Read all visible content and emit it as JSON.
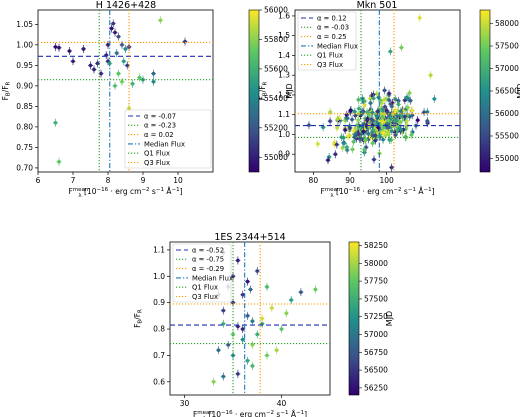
{
  "chart_data": [
    {
      "type": "scatter",
      "title": "H 1426+428",
      "ylabel": "F_B/F_R",
      "xlabel": "F_λ^mean [10^−16 · erg cm^−2 s^−1 Å^−1]",
      "xlim": [
        6,
        11
      ],
      "ylim": [
        0.69,
        1.085
      ],
      "xticks": [
        6,
        7,
        8,
        9,
        10
      ],
      "yticks": [
        0.7,
        0.75,
        0.8,
        0.85,
        0.9,
        0.95,
        1.0,
        1.05
      ],
      "colorbar": {
        "label": "MJD",
        "range": [
          54900,
          56000
        ],
        "ticks": [
          55000,
          55200,
          55400,
          55600,
          55800,
          56000
        ]
      },
      "legend": {
        "placement": "lower right",
        "entries": [
          "α = -0.07",
          "α = -0.23",
          "α = 0.02",
          "Median Flux",
          "Q1 Flux",
          "Q3 Flux"
        ]
      },
      "series": [
        {
          "points": [
            {
              "x": 6.5,
              "y": 0.995,
              "c": 54950
            },
            {
              "x": 6.6,
              "y": 0.993,
              "c": 54960
            },
            {
              "x": 6.9,
              "y": 0.985,
              "c": 54970
            },
            {
              "x": 7.3,
              "y": 0.99,
              "c": 54980
            },
            {
              "x": 7.0,
              "y": 0.96,
              "c": 54990
            },
            {
              "x": 7.5,
              "y": 0.95,
              "c": 55000
            },
            {
              "x": 7.6,
              "y": 0.94,
              "c": 55010
            },
            {
              "x": 7.8,
              "y": 0.93,
              "c": 55020
            },
            {
              "x": 8.0,
              "y": 0.96,
              "c": 55030
            },
            {
              "x": 8.1,
              "y": 1.04,
              "c": 54960
            },
            {
              "x": 8.15,
              "y": 1.052,
              "c": 55100
            },
            {
              "x": 8.2,
              "y": 1.03,
              "c": 54980
            },
            {
              "x": 8.3,
              "y": 1.02,
              "c": 55150
            },
            {
              "x": 8.4,
              "y": 1.0,
              "c": 55200
            },
            {
              "x": 8.0,
              "y": 1.0,
              "c": 54990
            },
            {
              "x": 8.25,
              "y": 0.98,
              "c": 55300
            },
            {
              "x": 7.95,
              "y": 0.975,
              "c": 55000
            },
            {
              "x": 8.5,
              "y": 0.99,
              "c": 55400
            },
            {
              "x": 8.45,
              "y": 0.96,
              "c": 55500
            },
            {
              "x": 8.55,
              "y": 0.95,
              "c": 55100
            },
            {
              "x": 8.6,
              "y": 0.995,
              "c": 55050
            },
            {
              "x": 8.05,
              "y": 0.955,
              "c": 55600
            },
            {
              "x": 7.7,
              "y": 0.955,
              "c": 55050
            },
            {
              "x": 8.3,
              "y": 0.93,
              "c": 55700
            },
            {
              "x": 9.0,
              "y": 0.915,
              "c": 55500
            },
            {
              "x": 9.3,
              "y": 0.91,
              "c": 55400
            },
            {
              "x": 8.7,
              "y": 0.905,
              "c": 55600
            },
            {
              "x": 9.5,
              "y": 1.06,
              "c": 55800
            },
            {
              "x": 8.2,
              "y": 0.9,
              "c": 55650
            },
            {
              "x": 10.2,
              "y": 1.008,
              "c": 55100
            },
            {
              "x": 9.3,
              "y": 0.93,
              "c": 55300
            },
            {
              "x": 8.9,
              "y": 0.92,
              "c": 55700
            },
            {
              "x": 8.4,
              "y": 0.91,
              "c": 55750
            },
            {
              "x": 6.5,
              "y": 0.81,
              "c": 55600
            },
            {
              "x": 6.6,
              "y": 0.715,
              "c": 55700
            },
            {
              "x": 8.6,
              "y": 0.845,
              "c": 55900
            }
          ]
        }
      ],
      "lines": {
        "horizontal": [
          {
            "y": 0.972,
            "role": "median",
            "color": "#1f2fb4",
            "style": "dashed"
          },
          {
            "y": 0.915,
            "role": "Q1",
            "color": "#2ca02c",
            "style": "dotted"
          },
          {
            "y": 1.006,
            "role": "Q3",
            "color": "#ff9900",
            "style": "dotted"
          }
        ],
        "vertical": [
          {
            "x": 8.05,
            "role": "Median Flux",
            "color": "#1f77b4",
            "style": "dashdot"
          },
          {
            "x": 7.75,
            "role": "Q1 Flux",
            "color": "#2ca02c",
            "style": "dotted"
          },
          {
            "x": 8.6,
            "role": "Q3 Flux",
            "color": "#ff9900",
            "style": "dotted"
          }
        ]
      }
    },
    {
      "type": "scatter",
      "title": "Mkn 501",
      "ylabel": "F_B/F_R",
      "xlabel": "F_λ^mean [10^−16 · erg cm^−2 s^−1 Å^−1]",
      "xlim": [
        75,
        120
      ],
      "ylim": [
        0.81,
        1.63
      ],
      "xticks": [
        80,
        90,
        100
      ],
      "yticks": [
        0.9,
        1.0,
        1.1,
        1.2,
        1.3,
        1.4,
        1.5,
        1.6
      ],
      "colorbar": {
        "label": "MJD",
        "range": [
          54700,
          58300
        ],
        "ticks": [
          55000,
          55500,
          56000,
          56500,
          57000,
          57500,
          58000
        ]
      },
      "legend": {
        "placement": "upper left",
        "entries": [
          "α = 0.12",
          "α = -0.03",
          "α = 0.25",
          "Median Flux",
          "Q1 Flux",
          "Q3 Flux"
        ]
      },
      "series": [
        {
          "generated_cloud": true,
          "count": 300,
          "x_center": 97,
          "y_center": 1.05
        }
      ],
      "lines": {
        "horizontal": [
          {
            "y": 1.045,
            "role": "median",
            "color": "#1f2fb4",
            "style": "dashed"
          },
          {
            "y": 0.985,
            "role": "Q1",
            "color": "#2ca02c",
            "style": "dotted"
          },
          {
            "y": 1.105,
            "role": "Q3",
            "color": "#ff9900",
            "style": "dotted"
          }
        ],
        "vertical": [
          {
            "x": 98,
            "role": "Median Flux",
            "color": "#1f77b4",
            "style": "dashdot"
          },
          {
            "x": 93,
            "role": "Q1 Flux",
            "color": "#2ca02c",
            "style": "dotted"
          },
          {
            "x": 102,
            "role": "Q3 Flux",
            "color": "#ff9900",
            "style": "dotted"
          }
        ]
      }
    },
    {
      "type": "scatter",
      "title": "1ES 2344+514",
      "ylabel": "F_B/F_R",
      "xlabel": "F_λ^mean [10^−16 · erg cm^−2 s^−1 Å^−1]",
      "xlim": [
        28.5,
        45
      ],
      "ylim": [
        0.55,
        1.13
      ],
      "xticks": [
        30,
        40
      ],
      "yticks": [
        0.6,
        0.7,
        0.8,
        0.9,
        1.0,
        1.1
      ],
      "colorbar": {
        "label": "MJD",
        "range": [
          56150,
          58300
        ],
        "ticks": [
          56250,
          56500,
          56750,
          57000,
          57250,
          57500,
          57750,
          58000,
          58250
        ]
      },
      "legend": {
        "placement": "upper left",
        "entries": [
          "α = -0.52",
          "α = -0.75",
          "α = -0.29",
          "Median Flux",
          "Q1 Flux",
          "Q3 Flux"
        ]
      },
      "series": [
        {
          "points": [
            {
              "x": 34,
              "y": 1.09,
              "c": 56300
            },
            {
              "x": 35.5,
              "y": 1.06,
              "c": 56350
            },
            {
              "x": 35,
              "y": 1.0,
              "c": 56400
            },
            {
              "x": 34.5,
              "y": 0.96,
              "c": 56300
            },
            {
              "x": 36,
              "y": 0.93,
              "c": 56500
            },
            {
              "x": 35,
              "y": 0.9,
              "c": 56450
            },
            {
              "x": 34,
              "y": 0.87,
              "c": 56600
            },
            {
              "x": 36.5,
              "y": 0.85,
              "c": 56800
            },
            {
              "x": 37,
              "y": 0.83,
              "c": 57000
            },
            {
              "x": 35.5,
              "y": 0.81,
              "c": 56400
            },
            {
              "x": 38,
              "y": 0.82,
              "c": 57300
            },
            {
              "x": 37.5,
              "y": 0.78,
              "c": 57500
            },
            {
              "x": 36,
              "y": 0.76,
              "c": 57200
            },
            {
              "x": 34.5,
              "y": 0.74,
              "c": 56700
            },
            {
              "x": 33.5,
              "y": 0.72,
              "c": 56900
            },
            {
              "x": 35,
              "y": 0.7,
              "c": 57100
            },
            {
              "x": 36.5,
              "y": 0.68,
              "c": 57400
            },
            {
              "x": 37,
              "y": 0.66,
              "c": 57600
            },
            {
              "x": 38.5,
              "y": 0.7,
              "c": 57800
            },
            {
              "x": 39.5,
              "y": 0.72,
              "c": 58000
            },
            {
              "x": 40,
              "y": 0.8,
              "c": 57700
            },
            {
              "x": 40.5,
              "y": 0.86,
              "c": 57900
            },
            {
              "x": 39,
              "y": 0.88,
              "c": 58100
            },
            {
              "x": 38.5,
              "y": 0.96,
              "c": 57600
            },
            {
              "x": 41,
              "y": 0.91,
              "c": 57300
            },
            {
              "x": 43.5,
              "y": 0.95,
              "c": 57800
            },
            {
              "x": 42,
              "y": 0.94,
              "c": 56700
            },
            {
              "x": 33,
              "y": 0.6,
              "c": 57900
            },
            {
              "x": 34,
              "y": 0.62,
              "c": 57000
            },
            {
              "x": 35.5,
              "y": 0.63,
              "c": 56500
            },
            {
              "x": 36.5,
              "y": 0.98,
              "c": 56300
            },
            {
              "x": 37.5,
              "y": 1.02,
              "c": 56600
            },
            {
              "x": 36,
              "y": 0.8,
              "c": 56350
            },
            {
              "x": 34,
              "y": 0.82,
              "c": 57500
            },
            {
              "x": 37,
              "y": 0.74,
              "c": 57900
            },
            {
              "x": 38,
              "y": 0.84,
              "c": 58150
            },
            {
              "x": 35,
              "y": 0.78,
              "c": 57750
            },
            {
              "x": 36.8,
              "y": 0.95,
              "c": 56900
            },
            {
              "x": 33.5,
              "y": 0.93,
              "c": 56250
            }
          ]
        }
      ],
      "lines": {
        "horizontal": [
          {
            "y": 0.815,
            "role": "median",
            "color": "#1f2fb4",
            "style": "dashed"
          },
          {
            "y": 0.745,
            "role": "Q1",
            "color": "#2ca02c",
            "style": "dotted"
          },
          {
            "y": 0.895,
            "role": "Q3",
            "color": "#ff9900",
            "style": "dotted"
          }
        ],
        "vertical": [
          {
            "x": 36.2,
            "role": "Median Flux",
            "color": "#1f77b4",
            "style": "dashdot"
          },
          {
            "x": 35.0,
            "role": "Q1 Flux",
            "color": "#2ca02c",
            "style": "dotted"
          },
          {
            "x": 37.8,
            "role": "Q3 Flux",
            "color": "#ff9900",
            "style": "dotted"
          }
        ]
      }
    }
  ],
  "colors": {
    "viridis": [
      "#440154",
      "#3b528b",
      "#21918c",
      "#5ec962",
      "#fde725"
    ],
    "colormap_dark_start": "#1a1a6e",
    "median_ratio": "#1f2fb4",
    "median_flux": "#1f77b4",
    "q1": "#2ca02c",
    "q3": "#ff9900"
  }
}
